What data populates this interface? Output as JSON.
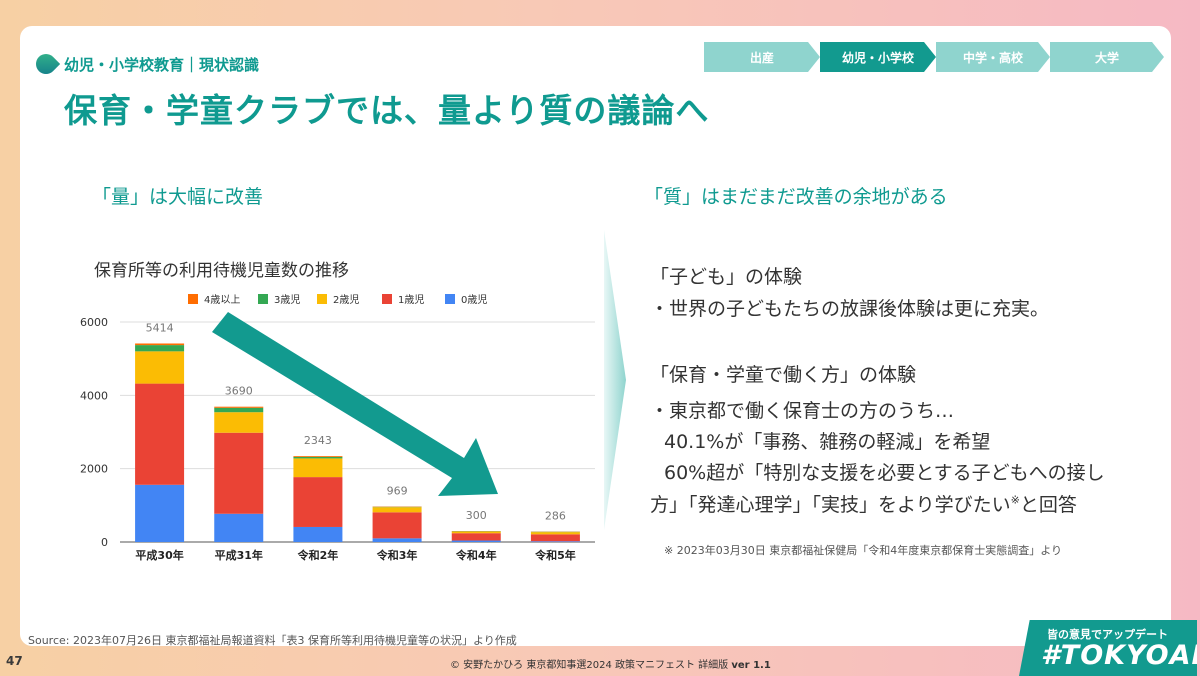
{
  "section_label": "幼児・小学校教育｜現状認識",
  "title": "保育・学童クラブでは、量より質の議論へ",
  "steps": [
    {
      "label": "出産",
      "active": false
    },
    {
      "label": "幼児・小学校",
      "active": true
    },
    {
      "label": "中学・高校",
      "active": false
    },
    {
      "label": "大学",
      "active": false
    }
  ],
  "left_heading": "「量」は大幅に改善",
  "right_heading": "「質」はまだまだ改善の余地がある",
  "chart_data": {
    "type": "bar",
    "stacked": true,
    "title": "保育所等の利用待機児童数の推移",
    "categories": [
      "平成30年",
      "平成31年",
      "令和2年",
      "令和3年",
      "令和4年",
      "令和5年"
    ],
    "series": [
      {
        "name": "0歳児",
        "color": "#4285f4",
        "values": [
          1560,
          770,
          410,
          100,
          40,
          20
        ]
      },
      {
        "name": "1歳児",
        "color": "#ea4335",
        "values": [
          2760,
          2210,
          1360,
          710,
          200,
          190
        ]
      },
      {
        "name": "2歳児",
        "color": "#fbbc04",
        "values": [
          880,
          560,
          510,
          140,
          45,
          60
        ]
      },
      {
        "name": "3歳児",
        "color": "#34a853",
        "values": [
          170,
          120,
          40,
          10,
          10,
          10
        ]
      },
      {
        "name": "4歳以上",
        "color": "#ff6d01",
        "values": [
          44,
          30,
          23,
          9,
          5,
          6
        ]
      }
    ],
    "legend_order": [
      "4歳以上",
      "3歳児",
      "2歳児",
      "1歳児",
      "0歳児"
    ],
    "totals": [
      5414,
      3690,
      2343,
      969,
      300,
      286
    ],
    "ylim": [
      0,
      6000
    ],
    "yticks": [
      0,
      2000,
      4000,
      6000
    ],
    "ytick_labels": [
      "0",
      "2000",
      "4000",
      "6000"
    ],
    "grid": true,
    "legend_position": "top",
    "trend_arrow_color": "#129a8f"
  },
  "right_body": {
    "section1_title": "「子ども」の体験",
    "section1_bullet": "・世界の子どもたちの放課後体験は更に充実。",
    "section2_title": "「保育・学童で働く方」の体験",
    "section2_bullet": "・東京都で働く保育士の方のうち…",
    "line1": "40.1%が「事務、雑務の軽減」を希望",
    "line2": "60%超が「特別な支援を必要とする子どもへの接し",
    "line3_main": "方」「発達心理学」「実技」をより学びたい",
    "line3_mark": "※",
    "line3_end": "と回答"
  },
  "note": "※ 2023年03月30日 東京都福祉保健局「令和4年度東京都保育士実態調査」より",
  "source": "Source: 2023年07月26日 東京都福祉局報道資料「表3 保育所等利用待機児童等の状況」より作成",
  "page_number": "47",
  "copyright_main": "© 安野たかひろ 東京都知事選2024 政策マニフェスト 詳細版",
  "copyright_version": "ver 1.1",
  "badge": {
    "top": "皆の意見でアップデート",
    "main": "#TOKYOAI"
  }
}
